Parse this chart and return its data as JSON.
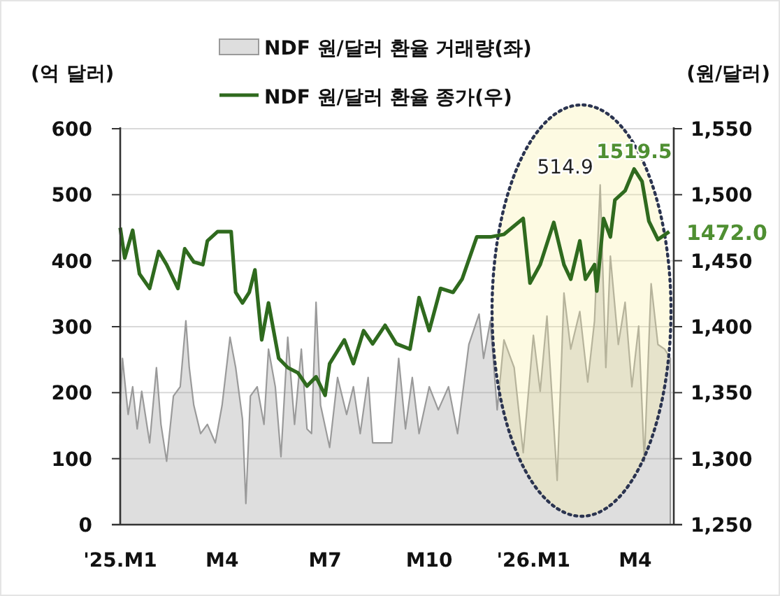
{
  "chart_data": {
    "type": "area",
    "ylabel": "(억 달러)",
    "y2label": "(원/달러)",
    "xlim": [
      "2025-01-01",
      "2026-05-05"
    ],
    "xticks": [
      {
        "value": "2025-01-01",
        "label": "'25.M1"
      },
      {
        "value": "2025-04-01",
        "label": "M4"
      },
      {
        "value": "2025-07-01",
        "label": "M7"
      },
      {
        "value": "2025-10-01",
        "label": "M10"
      },
      {
        "value": "2026-01-01",
        "label": "'26.M1"
      },
      {
        "value": "2026-04-01",
        "label": "M4"
      }
    ],
    "ylim": [
      0,
      600
    ],
    "yticks": [
      0,
      100,
      200,
      300,
      400,
      500,
      600
    ],
    "y2lim": [
      1250,
      1550
    ],
    "y2ticks": [
      {
        "value": 1250,
        "label": "1,250"
      },
      {
        "value": 1300,
        "label": "1,300"
      },
      {
        "value": 1350,
        "label": "1,350"
      },
      {
        "value": 1400,
        "label": "1,400"
      },
      {
        "value": 1450,
        "label": "1,450"
      },
      {
        "value": 1500,
        "label": "1,500"
      },
      {
        "value": 1550,
        "label": "1,550"
      }
    ],
    "grid": "y",
    "legend": "top",
    "series": [
      {
        "name": "NDF 원/달러 환율 거래량(좌)",
        "color": "#9a9a9a",
        "x": [
          "2025-01-01",
          "2025-01-03",
          "2025-01-08",
          "2025-01-12",
          "2025-01-16",
          "2025-01-20",
          "2025-01-27",
          "2025-02-02",
          "2025-02-06",
          "2025-02-11",
          "2025-02-17",
          "2025-02-23",
          "2025-02-28",
          "2025-03-03",
          "2025-03-07",
          "2025-03-13",
          "2025-03-19",
          "2025-03-26",
          "2025-04-01",
          "2025-04-08",
          "2025-04-13",
          "2025-04-19",
          "2025-04-22",
          "2025-04-26",
          "2025-05-02",
          "2025-05-08",
          "2025-05-12",
          "2025-05-18",
          "2025-05-23",
          "2025-05-29",
          "2025-06-04",
          "2025-06-10",
          "2025-06-15",
          "2025-06-19",
          "2025-06-23",
          "2025-06-27",
          "2025-07-05",
          "2025-07-12",
          "2025-07-20",
          "2025-07-26",
          "2025-08-01",
          "2025-08-08",
          "2025-08-12",
          "2025-08-29",
          "2025-09-04",
          "2025-09-10",
          "2025-09-16",
          "2025-09-22",
          "2025-10-01",
          "2025-10-09",
          "2025-10-18",
          "2025-10-26",
          "2025-11-05",
          "2025-11-14",
          "2025-11-18",
          "2025-11-24",
          "2025-11-30",
          "2025-12-06",
          "2025-12-15",
          "2025-12-23",
          "2026-01-01",
          "2026-01-07",
          "2026-01-13",
          "2026-01-22",
          "2026-01-28",
          "2026-02-03",
          "2026-02-11",
          "2026-02-18",
          "2026-02-24",
          "2026-03-01",
          "2026-03-06",
          "2026-03-10",
          "2026-03-17",
          "2026-03-23",
          "2026-03-29",
          "2026-04-04",
          "2026-04-09",
          "2026-04-15",
          "2026-04-21",
          "2026-04-27",
          "2026-05-02"
        ],
        "values": [
          181,
          252,
          167,
          209,
          145,
          202,
          124,
          238,
          152,
          96,
          195,
          209,
          309,
          238,
          181,
          138,
          152,
          124,
          181,
          284,
          238,
          160,
          32,
          195,
          209,
          152,
          266,
          209,
          103,
          284,
          152,
          266,
          145,
          138,
          337,
          181,
          117,
          223,
          167,
          209,
          138,
          223,
          124,
          124,
          252,
          145,
          223,
          138,
          209,
          174,
          209,
          138,
          273,
          319,
          252,
          309,
          174,
          280,
          238,
          109,
          287,
          202,
          316,
          67,
          351,
          266,
          323,
          216,
          309,
          514.9,
          238,
          407,
          273,
          337,
          209,
          301,
          96,
          365,
          273,
          266,
          252
        ],
        "value_labels": [
          null,
          null,
          null,
          null,
          null,
          null,
          null,
          null,
          null,
          null,
          null,
          null,
          null,
          null,
          null,
          null,
          null,
          null,
          null,
          null,
          null,
          null,
          null,
          null,
          null,
          null,
          null,
          null,
          null,
          null,
          null,
          null,
          null,
          null,
          null,
          null,
          null,
          null,
          null,
          null,
          null,
          null,
          null,
          null,
          null,
          null,
          null,
          null,
          null,
          null,
          null,
          null,
          null,
          null,
          null,
          null,
          null,
          null,
          null,
          null,
          null,
          null,
          null,
          null,
          null,
          null,
          null,
          null,
          null,
          "514.9",
          null,
          null,
          null,
          null,
          null,
          null,
          null,
          null,
          null,
          null,
          null
        ]
      },
      {
        "name": "NDF 원/달러 환율 종가(우)",
        "type": "line",
        "axis": "y2",
        "color": "#2f6a1e",
        "x": [
          "2025-01-01",
          "2025-01-05",
          "2025-01-12",
          "2025-01-18",
          "2025-01-27",
          "2025-02-04",
          "2025-02-11",
          "2025-02-21",
          "2025-02-27",
          "2025-03-07",
          "2025-03-15",
          "2025-03-19",
          "2025-03-28",
          "2025-04-09",
          "2025-04-13",
          "2025-04-19",
          "2025-04-25",
          "2025-04-30",
          "2025-05-06",
          "2025-05-12",
          "2025-05-21",
          "2025-05-29",
          "2025-06-07",
          "2025-06-15",
          "2025-06-23",
          "2025-07-01",
          "2025-07-05",
          "2025-07-18",
          "2025-07-26",
          "2025-08-04",
          "2025-08-12",
          "2025-08-23",
          "2025-09-02",
          "2025-09-14",
          "2025-09-22",
          "2025-10-01",
          "2025-10-11",
          "2025-10-22",
          "2025-10-30",
          "2025-11-12",
          "2025-11-24",
          "2025-12-06",
          "2025-12-23",
          "2025-12-29",
          "2026-01-07",
          "2026-01-19",
          "2026-01-28",
          "2026-02-03",
          "2026-02-11",
          "2026-02-16",
          "2026-02-24",
          "2026-02-26",
          "2026-03-04",
          "2026-03-10",
          "2026-03-14",
          "2026-03-23",
          "2026-03-31",
          "2026-04-07",
          "2026-04-13",
          "2026-04-21",
          "2026-05-01"
        ],
        "values": [
          1475,
          1452,
          1473,
          1440,
          1429,
          1457,
          1447,
          1429,
          1459,
          1449,
          1447,
          1465,
          1472,
          1472,
          1426,
          1418,
          1426,
          1443,
          1390,
          1418,
          1376,
          1369,
          1365,
          1355,
          1362,
          1348,
          1372,
          1390,
          1372,
          1397,
          1387,
          1401,
          1387,
          1383,
          1422,
          1397,
          1429,
          1426,
          1436,
          1468,
          1468,
          1470,
          1482,
          1433,
          1447,
          1479,
          1447,
          1436,
          1465,
          1436,
          1447,
          1427,
          1482,
          1468,
          1496,
          1503,
          1519.5,
          1510,
          1480,
          1466,
          1472.0
        ],
        "value_labels": [
          null,
          null,
          null,
          null,
          null,
          null,
          null,
          null,
          null,
          null,
          null,
          null,
          null,
          null,
          null,
          null,
          null,
          null,
          null,
          null,
          null,
          null,
          null,
          null,
          null,
          null,
          null,
          null,
          null,
          null,
          null,
          null,
          null,
          null,
          null,
          null,
          null,
          null,
          null,
          null,
          null,
          null,
          null,
          null,
          null,
          null,
          null,
          null,
          null,
          null,
          null,
          null,
          null,
          null,
          null,
          null,
          "1519.5",
          null,
          null,
          null,
          "1472.0"
        ]
      }
    ]
  }
}
